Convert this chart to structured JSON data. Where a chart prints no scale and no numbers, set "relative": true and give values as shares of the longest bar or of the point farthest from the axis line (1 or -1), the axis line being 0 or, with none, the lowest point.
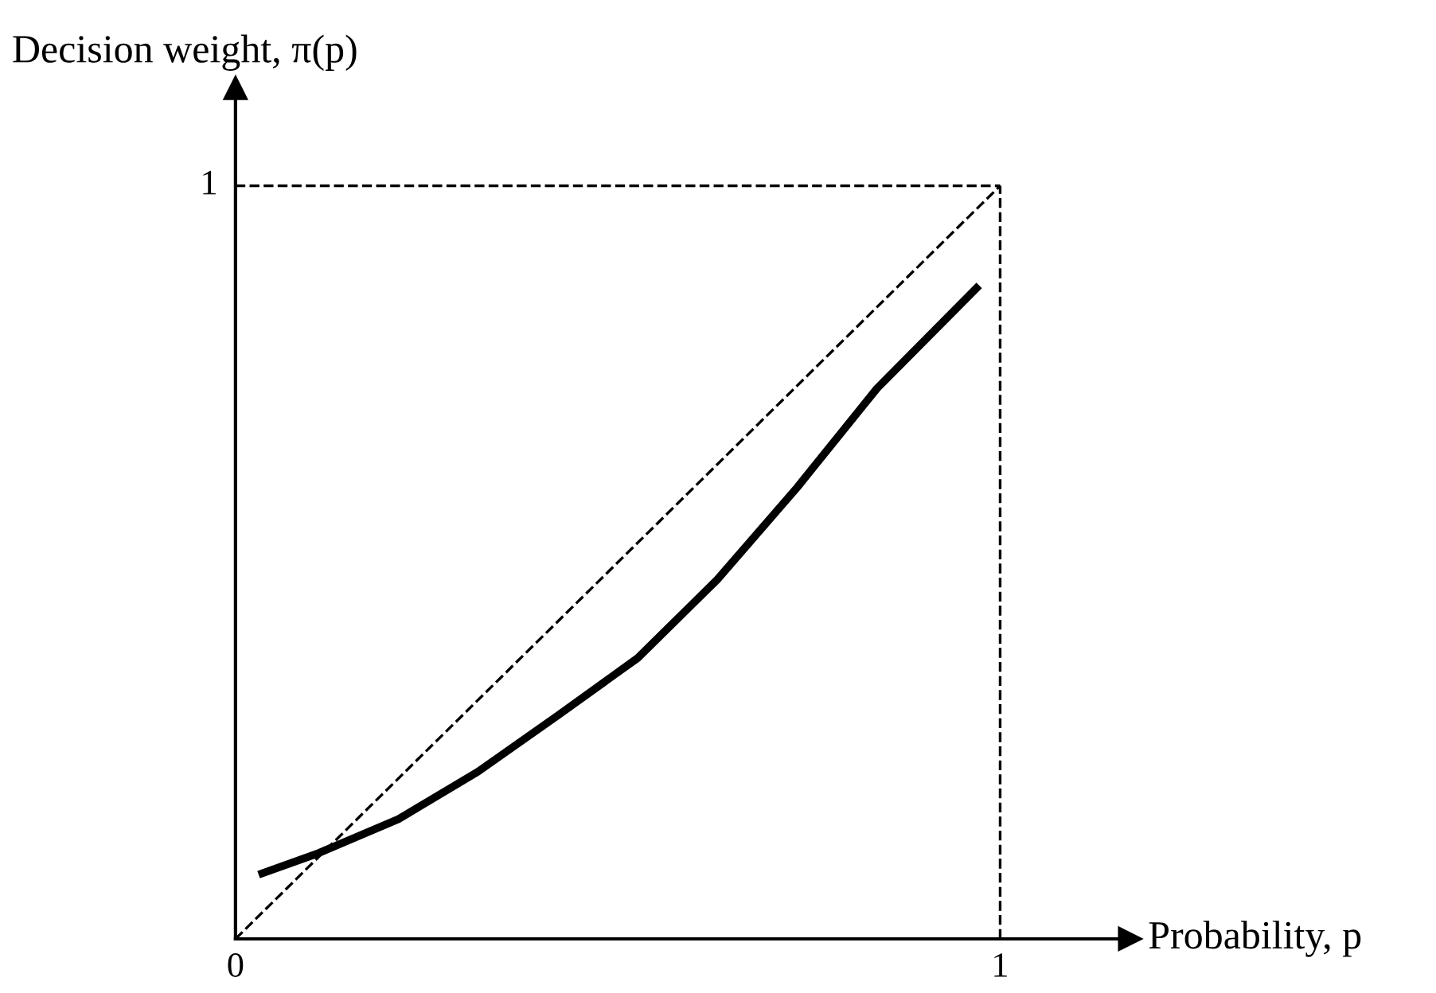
{
  "chart_data": {
    "type": "line",
    "xlabel": "Probability, p",
    "ylabel": "Decision weight, π(p)",
    "xlim": [
      0,
      1.17
    ],
    "relative": true,
    "xticks": [
      {
        "value": 0,
        "label": "0"
      },
      1
    ],
    "annotations": [
      {
        "text": "1",
        "x": 0,
        "y": 1
      }
    ],
    "grid": false,
    "legend": false,
    "marker": "none",
    "series": [
      {
        "color": "#000000",
        "line_style": "dashed",
        "x": [
          0,
          1
        ],
        "values": [
          0,
          1
        ]
      },
      {
        "color": "#000000",
        "line_style": "dashed",
        "x": [
          0,
          1
        ],
        "values": [
          1,
          1
        ]
      },
      {
        "color": "#000000",
        "line_style": "dashed",
        "x": [
          1,
          1
        ],
        "values": [
          0,
          1
        ]
      },
      {
        "color": "#000000",
        "line_style": "solid",
        "x": [
          0.035,
          0.109,
          0.213,
          0.317,
          0.422,
          0.526,
          0.63,
          0.735,
          0.839,
          0.969
        ],
        "values": [
          0.087,
          0.114,
          0.159,
          0.222,
          0.297,
          0.373,
          0.477,
          0.6,
          0.731,
          0.864
        ]
      }
    ]
  }
}
